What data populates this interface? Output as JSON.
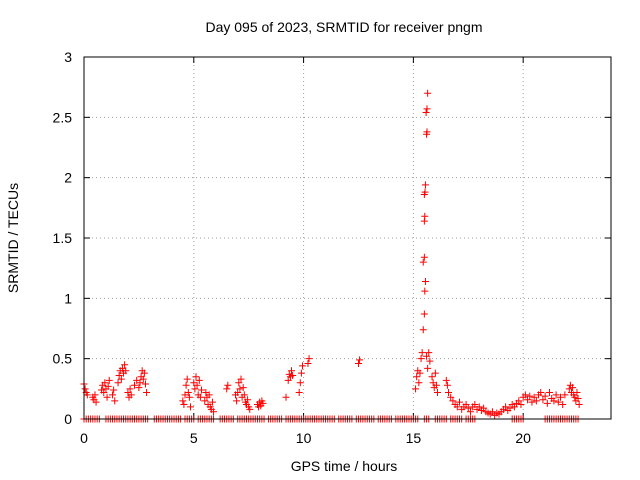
{
  "chart_data": {
    "type": "scatter",
    "title": "Day 095 of 2023, SRMTID for receiver pngm",
    "xlabel": "GPS time / hours",
    "ylabel": "SRMTID / TECUs",
    "xlim": [
      0,
      24
    ],
    "ylim": [
      0,
      3
    ],
    "x_ticks": [
      0,
      5,
      10,
      15,
      20
    ],
    "x_tick_labels": [
      "0",
      "5",
      "10",
      "15",
      "20"
    ],
    "y_ticks": [
      0,
      0.5,
      1,
      1.5,
      2,
      2.5,
      3
    ],
    "y_tick_labels": [
      "0",
      "0.5",
      "1",
      "1.5",
      "2",
      "2.5",
      "3"
    ],
    "grid": true,
    "marker": "+",
    "marker_color": "#ff0000",
    "series": [
      {
        "name": "SRMTID",
        "points": [
          [
            0.0,
            0.29
          ],
          [
            0.05,
            0.25
          ],
          [
            0.1,
            0.22
          ],
          [
            0.15,
            0.2
          ],
          [
            0.4,
            0.18
          ],
          [
            0.45,
            0.16
          ],
          [
            0.5,
            0.2
          ],
          [
            0.55,
            0.14
          ],
          [
            0.8,
            0.24
          ],
          [
            0.85,
            0.28
          ],
          [
            0.9,
            0.22
          ],
          [
            0.95,
            0.3
          ],
          [
            1.0,
            0.25
          ],
          [
            1.05,
            0.18
          ],
          [
            1.1,
            0.27
          ],
          [
            1.15,
            0.32
          ],
          [
            1.3,
            0.2
          ],
          [
            1.35,
            0.24
          ],
          [
            1.4,
            0.15
          ],
          [
            1.55,
            0.3
          ],
          [
            1.6,
            0.36
          ],
          [
            1.65,
            0.4
          ],
          [
            1.7,
            0.33
          ],
          [
            1.75,
            0.42
          ],
          [
            1.8,
            0.38
          ],
          [
            1.85,
            0.45
          ],
          [
            1.9,
            0.4
          ],
          [
            2.0,
            0.22
          ],
          [
            2.05,
            0.18
          ],
          [
            2.1,
            0.25
          ],
          [
            2.15,
            0.2
          ],
          [
            2.3,
            0.28
          ],
          [
            2.4,
            0.32
          ],
          [
            2.5,
            0.26
          ],
          [
            2.55,
            0.3
          ],
          [
            2.6,
            0.35
          ],
          [
            2.65,
            0.4
          ],
          [
            2.7,
            0.33
          ],
          [
            2.75,
            0.38
          ],
          [
            2.8,
            0.29
          ],
          [
            2.85,
            0.22
          ],
          [
            4.5,
            0.15
          ],
          [
            4.55,
            0.12
          ],
          [
            4.6,
            0.2
          ],
          [
            4.65,
            0.28
          ],
          [
            4.7,
            0.33
          ],
          [
            4.75,
            0.22
          ],
          [
            4.8,
            0.18
          ],
          [
            4.85,
            0.1
          ],
          [
            5.0,
            0.3
          ],
          [
            5.05,
            0.25
          ],
          [
            5.1,
            0.35
          ],
          [
            5.15,
            0.28
          ],
          [
            5.2,
            0.2
          ],
          [
            5.25,
            0.32
          ],
          [
            5.3,
            0.18
          ],
          [
            5.35,
            0.24
          ],
          [
            5.5,
            0.15
          ],
          [
            5.55,
            0.22
          ],
          [
            5.6,
            0.18
          ],
          [
            5.65,
            0.12
          ],
          [
            5.7,
            0.2
          ],
          [
            5.75,
            0.1
          ],
          [
            5.8,
            0.08
          ],
          [
            5.85,
            0.14
          ],
          [
            5.9,
            0.06
          ],
          [
            6.5,
            0.25
          ],
          [
            6.55,
            0.28
          ],
          [
            6.9,
            0.2
          ],
          [
            6.95,
            0.15
          ],
          [
            7.0,
            0.22
          ],
          [
            7.05,
            0.3
          ],
          [
            7.1,
            0.25
          ],
          [
            7.15,
            0.33
          ],
          [
            7.2,
            0.18
          ],
          [
            7.25,
            0.26
          ],
          [
            7.3,
            0.2
          ],
          [
            7.35,
            0.14
          ],
          [
            7.4,
            0.12
          ],
          [
            7.45,
            0.16
          ],
          [
            7.5,
            0.1
          ],
          [
            7.55,
            0.08
          ],
          [
            7.9,
            0.12
          ],
          [
            7.95,
            0.1
          ],
          [
            8.0,
            0.14
          ],
          [
            8.05,
            0.11
          ],
          [
            8.1,
            0.15
          ],
          [
            8.15,
            0.13
          ],
          [
            9.2,
            0.18
          ],
          [
            9.3,
            0.32
          ],
          [
            9.35,
            0.37
          ],
          [
            9.4,
            0.35
          ],
          [
            9.45,
            0.4
          ],
          [
            9.5,
            0.36
          ],
          [
            9.8,
            0.22
          ],
          [
            9.85,
            0.3
          ],
          [
            9.9,
            0.38
          ],
          [
            9.95,
            0.44
          ],
          [
            10.2,
            0.46
          ],
          [
            10.25,
            0.5
          ],
          [
            12.5,
            0.46
          ],
          [
            12.55,
            0.49
          ],
          [
            15.1,
            0.25
          ],
          [
            15.15,
            0.35
          ],
          [
            15.2,
            0.4
          ],
          [
            15.25,
            0.3
          ],
          [
            15.3,
            0.38
          ],
          [
            15.35,
            0.5
          ],
          [
            15.4,
            0.55
          ],
          [
            15.45,
            0.74
          ],
          [
            15.5,
            0.87
          ],
          [
            15.52,
            1.06
          ],
          [
            15.55,
            1.14
          ],
          [
            15.45,
            1.3
          ],
          [
            15.5,
            1.34
          ],
          [
            15.5,
            1.64
          ],
          [
            15.52,
            1.68
          ],
          [
            15.5,
            1.86
          ],
          [
            15.53,
            1.88
          ],
          [
            15.55,
            1.94
          ],
          [
            15.6,
            2.36
          ],
          [
            15.62,
            2.38
          ],
          [
            15.58,
            2.54
          ],
          [
            15.62,
            2.57
          ],
          [
            15.65,
            2.7
          ],
          [
            15.6,
            0.52
          ],
          [
            15.65,
            0.42
          ],
          [
            15.7,
            0.55
          ],
          [
            15.75,
            0.48
          ],
          [
            15.85,
            0.35
          ],
          [
            15.9,
            0.3
          ],
          [
            15.95,
            0.26
          ],
          [
            16.0,
            0.38
          ],
          [
            16.05,
            0.28
          ],
          [
            16.1,
            0.22
          ],
          [
            16.5,
            0.32
          ],
          [
            16.55,
            0.28
          ],
          [
            16.6,
            0.22
          ],
          [
            16.7,
            0.18
          ],
          [
            16.8,
            0.15
          ],
          [
            16.9,
            0.12
          ],
          [
            17.0,
            0.1
          ],
          [
            17.1,
            0.14
          ],
          [
            17.2,
            0.08
          ],
          [
            17.3,
            0.1
          ],
          [
            17.4,
            0.12
          ],
          [
            17.5,
            0.09
          ],
          [
            17.6,
            0.06
          ],
          [
            17.7,
            0.1
          ],
          [
            17.8,
            0.12
          ],
          [
            17.9,
            0.08
          ],
          [
            18.0,
            0.1
          ],
          [
            18.1,
            0.07
          ],
          [
            18.2,
            0.09
          ],
          [
            18.3,
            0.06
          ],
          [
            18.4,
            0.05
          ],
          [
            18.5,
            0.04
          ],
          [
            18.6,
            0.06
          ],
          [
            18.7,
            0.03
          ],
          [
            18.8,
            0.05
          ],
          [
            18.9,
            0.04
          ],
          [
            19.0,
            0.06
          ],
          [
            19.1,
            0.08
          ],
          [
            19.2,
            0.1
          ],
          [
            19.3,
            0.07
          ],
          [
            19.4,
            0.09
          ],
          [
            19.5,
            0.12
          ],
          [
            19.6,
            0.1
          ],
          [
            19.7,
            0.13
          ],
          [
            19.8,
            0.15
          ],
          [
            19.9,
            0.12
          ],
          [
            20.0,
            0.18
          ],
          [
            20.1,
            0.2
          ],
          [
            20.2,
            0.16
          ],
          [
            20.3,
            0.19
          ],
          [
            20.4,
            0.14
          ],
          [
            20.5,
            0.18
          ],
          [
            20.6,
            0.15
          ],
          [
            20.7,
            0.2
          ],
          [
            20.8,
            0.22
          ],
          [
            20.9,
            0.16
          ],
          [
            21.0,
            0.19
          ],
          [
            21.1,
            0.13
          ],
          [
            21.2,
            0.22
          ],
          [
            21.3,
            0.17
          ],
          [
            21.4,
            0.15
          ],
          [
            21.5,
            0.2
          ],
          [
            21.6,
            0.14
          ],
          [
            21.7,
            0.18
          ],
          [
            21.8,
            0.12
          ],
          [
            21.9,
            0.2
          ],
          [
            22.1,
            0.25
          ],
          [
            22.15,
            0.28
          ],
          [
            22.2,
            0.22
          ],
          [
            22.25,
            0.26
          ],
          [
            22.3,
            0.2
          ],
          [
            22.35,
            0.18
          ],
          [
            22.4,
            0.15
          ],
          [
            22.45,
            0.22
          ],
          [
            22.5,
            0.17
          ],
          [
            22.55,
            0.12
          ]
        ]
      }
    ],
    "zero_band": [
      [
        0.0,
        0.7
      ],
      [
        1.0,
        1.9
      ],
      [
        2.0,
        2.9
      ],
      [
        3.2,
        4.4
      ],
      [
        4.6,
        5.0
      ],
      [
        5.2,
        5.9
      ],
      [
        6.2,
        6.8
      ],
      [
        7.0,
        8.2
      ],
      [
        8.4,
        9.0
      ],
      [
        9.2,
        10.5
      ],
      [
        10.6,
        11.4
      ],
      [
        11.6,
        12.2
      ],
      [
        12.4,
        13.2
      ],
      [
        13.4,
        14.0
      ],
      [
        14.2,
        15.2
      ],
      [
        15.5,
        15.7
      ],
      [
        16.0,
        16.5
      ],
      [
        16.7,
        17.2
      ],
      [
        17.4,
        17.8
      ],
      [
        19.5,
        20.0
      ],
      [
        21.0,
        22.5
      ]
    ]
  }
}
